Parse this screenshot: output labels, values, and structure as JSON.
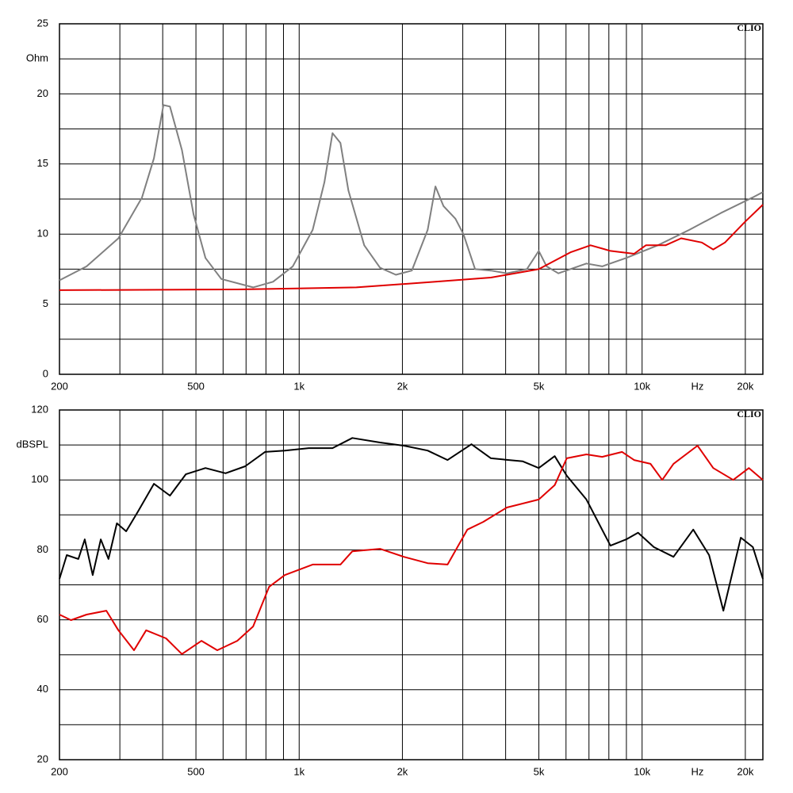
{
  "chart_data": [
    {
      "type": "line",
      "xscale": "log",
      "xlim": [
        200,
        22500
      ],
      "ylim": [
        0,
        25
      ],
      "xticks": [
        200,
        500,
        {
          "value": 1000,
          "label": "1k"
        },
        {
          "value": 2000,
          "label": "2k"
        },
        {
          "value": 5000,
          "label": "5k"
        },
        {
          "value": 10000,
          "label": "10k"
        },
        {
          "value": 20000,
          "label": "20k"
        }
      ],
      "xminor": [
        300,
        400,
        600,
        700,
        800,
        900,
        3000,
        4000,
        6000,
        7000,
        8000,
        9000
      ],
      "yticks": [
        0,
        5,
        10,
        15,
        20,
        25
      ],
      "yminor": [
        2.5,
        7.5,
        12.5,
        17.5,
        22.5
      ],
      "ylabel": "Ohm",
      "xlabel": "Hz",
      "watermark": "CLIO",
      "grid": true,
      "series": [
        {
          "color": "#808080",
          "x": [
            200,
            240,
            297,
            348,
            377,
            402,
            420,
            455,
            492,
            533,
            593,
            734,
            839,
            958,
            1095,
            1185,
            1251,
            1319,
            1392,
            1548,
            1721,
            1914,
            2130,
            2370,
            2497,
            2635,
            2855,
            3013,
            3259,
            3624,
            4031,
            4613,
            4998,
            5266,
            5700,
            6880,
            7649,
            8983,
            11120,
            13730,
            16960,
            20960,
            22500
          ],
          "values": [
            6.7,
            7.7,
            9.7,
            12.6,
            15.4,
            19.2,
            19.1,
            16,
            11.4,
            8.3,
            6.8,
            6.2,
            6.6,
            7.7,
            10.3,
            13.7,
            17.2,
            16.5,
            13.1,
            9.2,
            7.6,
            7.1,
            7.4,
            10.3,
            13.4,
            12,
            11.1,
            10,
            7.5,
            7.4,
            7.2,
            7.5,
            8.8,
            7.7,
            7.2,
            7.9,
            7.7,
            8.3,
            9.2,
            10.3,
            11.5,
            12.6,
            13
          ]
        },
        {
          "color": "#e00000",
          "x": [
            200,
            660,
            1468,
            2497,
            3624,
            4998,
            6180,
            7075,
            8084,
            9474,
            10260,
            11710,
            13000,
            14930,
            16120,
            17440,
            20000,
            22500
          ],
          "values": [
            6,
            6.05,
            6.2,
            6.6,
            6.9,
            7.5,
            8.7,
            9.2,
            8.8,
            8.6,
            9.2,
            9.2,
            9.7,
            9.4,
            8.9,
            9.4,
            10.9,
            12.1
          ]
        }
      ]
    },
    {
      "type": "line",
      "xscale": "log",
      "xlim": [
        200,
        22500
      ],
      "ylim": [
        20,
        120
      ],
      "xticks": [
        200,
        500,
        {
          "value": 1000,
          "label": "1k"
        },
        {
          "value": 2000,
          "label": "2k"
        },
        {
          "value": 5000,
          "label": "5k"
        },
        {
          "value": 10000,
          "label": "10k"
        },
        {
          "value": 20000,
          "label": "20k"
        }
      ],
      "xminor": [
        300,
        400,
        600,
        700,
        800,
        900,
        3000,
        4000,
        6000,
        7000,
        8000,
        9000
      ],
      "yticks": [
        20,
        40,
        60,
        80,
        100,
        120
      ],
      "yminor": [
        30,
        50,
        70,
        90,
        110
      ],
      "ylabel": "dBSPL",
      "xlabel": "Hz",
      "watermark": "CLIO",
      "grid": true,
      "series": [
        {
          "color": "#000000",
          "x": [
            200,
            210,
            227,
            237,
            250,
            264,
            278,
            294,
            313,
            339,
            377,
            420,
            467,
            533,
            610,
            696,
            795,
            908,
            1066,
            1251,
            1429,
            1721,
            2020,
            2370,
            2708,
            3180,
            3624,
            4489,
            4998,
            5562,
            6030,
            6880,
            8084,
            8983,
            9731,
            10820,
            12350,
            14100,
            15680,
            17260,
            19400,
            21040,
            22500
          ],
          "values": [
            71.7,
            78.5,
            77.4,
            83,
            72.8,
            83,
            77.4,
            87.6,
            85.3,
            91,
            98.9,
            95.5,
            101.6,
            103.4,
            101.9,
            103.9,
            108,
            108.4,
            109.1,
            109.1,
            112,
            110.7,
            109.8,
            108.4,
            105.7,
            110.2,
            106.2,
            105.3,
            103.4,
            106.8,
            101.2,
            94.4,
            81.2,
            83,
            84.9,
            80.8,
            78,
            85.8,
            78.5,
            62.6,
            83.5,
            80.8,
            71.7
          ]
        },
        {
          "color": "#e00000",
          "x": [
            200,
            216,
            240,
            274,
            297,
            330,
            358,
            409,
            455,
            519,
            577,
            660,
            734,
            817,
            908,
            1095,
            1319,
            1429,
            1721,
            2020,
            2370,
            2708,
            3094,
            3442,
            4031,
            4998,
            5562,
            6030,
            6880,
            7649,
            8746,
            9474,
            10580,
            11450,
            12350,
            14510,
            16120,
            18440,
            20490,
            22500
          ],
          "values": [
            61.5,
            59.9,
            61.5,
            62.6,
            57,
            51.3,
            57,
            54.7,
            50.2,
            54,
            51.3,
            54,
            58.1,
            69.4,
            72.8,
            75.8,
            75.8,
            79.6,
            80.3,
            78,
            76.2,
            75.8,
            85.8,
            88,
            92.1,
            94.4,
            98.5,
            106.2,
            107.3,
            106.6,
            108,
            105.7,
            104.6,
            100,
            104.6,
            109.8,
            103.4,
            100,
            103.4,
            100
          ]
        }
      ]
    }
  ]
}
